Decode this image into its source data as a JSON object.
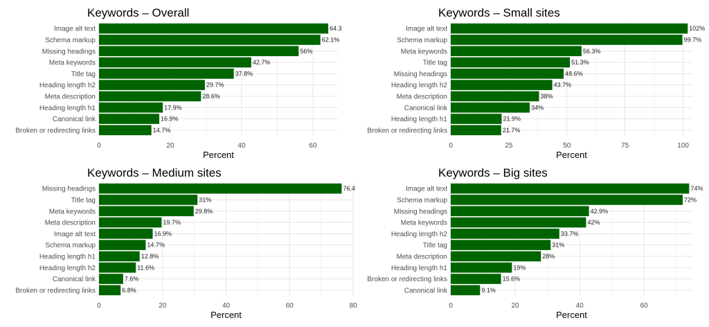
{
  "colors": {
    "bar": "#006400"
  },
  "chart_data": [
    {
      "type": "bar",
      "orientation": "horizontal",
      "title": "Keywords – Overall",
      "xlabel": "Percent",
      "ylabel": "",
      "xlim": [
        0,
        67
      ],
      "ticks": [
        0,
        20,
        40,
        60
      ],
      "grid": true,
      "categories": [
        "Image alt text",
        "Schema markup",
        "Missing headings",
        "Meta keywords",
        "Title tag",
        "Heading length h2",
        "Meta description",
        "Heading length h1",
        "Canonical link",
        "Broken or redirecting links"
      ],
      "values": [
        64.3,
        62.1,
        56,
        42.7,
        37.8,
        29.7,
        28.6,
        17.9,
        16.9,
        14.7
      ],
      "value_labels": [
        "64.3",
        "62.1%",
        "56%",
        "42.7%",
        "37.8%",
        "29.7%",
        "28.6%",
        "17.9%",
        "16.9%",
        "14.7%"
      ]
    },
    {
      "type": "bar",
      "orientation": "horizontal",
      "title": "Keywords – Small sites",
      "xlabel": "Percent",
      "ylabel": "",
      "xlim": [
        0,
        104
      ],
      "ticks": [
        0,
        25,
        50,
        75,
        100
      ],
      "grid": true,
      "categories": [
        "Image alt text",
        "Schema markup",
        "Meta keywords",
        "Title tag",
        "Missing headings",
        "Heading length h2",
        "Meta description",
        "Canonical link",
        "Heading length h1",
        "Broken or redirecting links"
      ],
      "values": [
        102,
        99.7,
        56.3,
        51.3,
        48.6,
        43.7,
        38,
        34,
        21.9,
        21.7
      ],
      "value_labels": [
        "102%",
        "99.7%",
        "56.3%",
        "51.3%",
        "48.6%",
        "43.7%",
        "38%",
        "34%",
        "21.9%",
        "21.7%"
      ]
    },
    {
      "type": "bar",
      "orientation": "horizontal",
      "title": "Keywords – Medium sites",
      "xlabel": "Percent",
      "ylabel": "",
      "xlim": [
        0,
        80
      ],
      "ticks": [
        0,
        20,
        40,
        60,
        80
      ],
      "grid": true,
      "categories": [
        "Missing headings",
        "Title tag",
        "Meta keywords",
        "Meta description",
        "Image alt text",
        "Schema markup",
        "Heading length h1",
        "Heading length h2",
        "Canonical link",
        "Broken or redirecting links"
      ],
      "values": [
        76.4,
        31,
        29.8,
        19.7,
        16.9,
        14.7,
        12.8,
        11.6,
        7.6,
        6.8
      ],
      "value_labels": [
        "76.4",
        "31%",
        "29.8%",
        "19.7%",
        "16.9%",
        "14.7%",
        "12.8%",
        "11.6%",
        "7.6%",
        "6.8%"
      ]
    },
    {
      "type": "bar",
      "orientation": "horizontal",
      "title": "Keywords – Big sites",
      "xlabel": "Percent",
      "ylabel": "",
      "xlim": [
        0,
        75
      ],
      "ticks": [
        0,
        20,
        40,
        60
      ],
      "grid": true,
      "categories": [
        "Image alt text",
        "Schema markup",
        "Missing headings",
        "Meta keywords",
        "Heading length h2",
        "Title tag",
        "Meta description",
        "Heading length h1",
        "Broken or redirecting links",
        "Canonical link"
      ],
      "values": [
        74,
        72,
        42.9,
        42,
        33.7,
        31,
        28,
        19,
        15.6,
        9.1
      ],
      "value_labels": [
        "74%",
        "72%",
        "42.9%",
        "42%",
        "33.7%",
        "31%",
        "28%",
        "19%",
        "15.6%",
        "9.1%"
      ]
    }
  ]
}
